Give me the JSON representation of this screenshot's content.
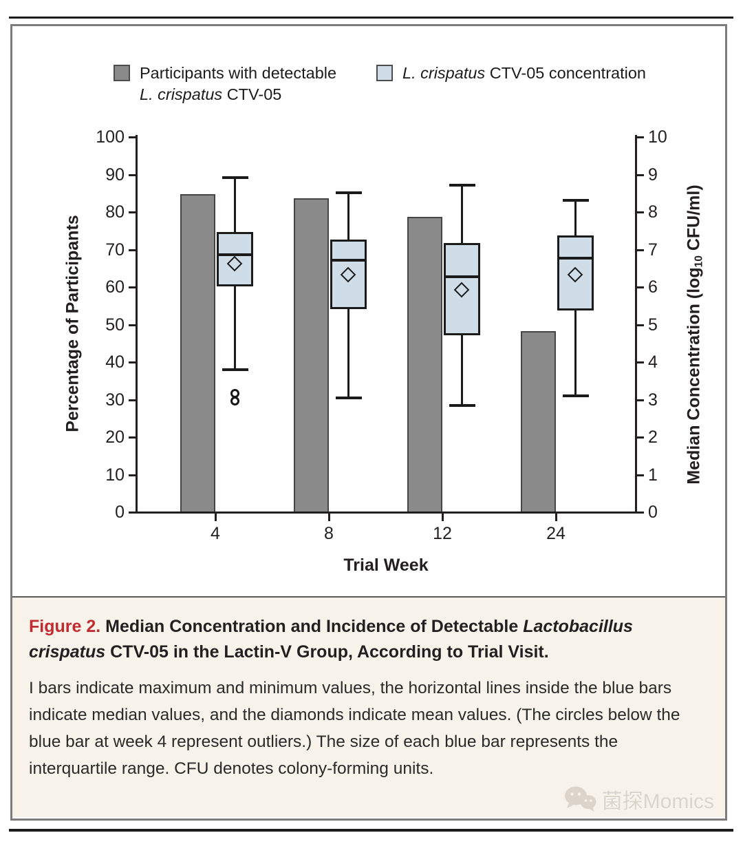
{
  "legend": {
    "item1": {
      "line1": "Participants with detectable",
      "line2_italic": "L. crispatus",
      "line2_rest": " CTV-05"
    },
    "item2": {
      "italic": "L. crispatus",
      "rest": " CTV-05 concentration"
    }
  },
  "chart_data": {
    "type": "bar+boxplot",
    "categories": [
      "4",
      "8",
      "12",
      "24"
    ],
    "xlabel": "Trial Week",
    "y_left": {
      "label": "Percentage of Participants",
      "min": 0,
      "max": 100,
      "step": 10
    },
    "y_right": {
      "title_pre": "Median Concentration (log",
      "title_sub": "10",
      "title_post": " CFU/ml)",
      "min": 0,
      "max": 10,
      "step": 1
    },
    "bar_series": {
      "name": "Participants with detectable L. crispatus CTV-05",
      "unit": "percent",
      "values": [
        84.5,
        83.5,
        78.5,
        48
      ]
    },
    "box_series": {
      "name": "L. crispatus CTV-05 concentration",
      "unit": "log10 CFU/ml",
      "boxes": [
        {
          "week": "4",
          "max": 8.9,
          "q3": 7.45,
          "median": 6.85,
          "mean": 6.6,
          "q1": 6.0,
          "min": 3.8,
          "outliers": [
            3.15,
            2.95
          ]
        },
        {
          "week": "8",
          "max": 8.5,
          "q3": 7.25,
          "median": 6.7,
          "mean": 6.3,
          "q1": 5.4,
          "min": 3.05,
          "outliers": []
        },
        {
          "week": "12",
          "max": 8.7,
          "q3": 7.15,
          "median": 6.25,
          "mean": 5.9,
          "q1": 4.7,
          "min": 2.85,
          "outliers": []
        },
        {
          "week": "24",
          "max": 8.3,
          "q3": 7.35,
          "median": 6.75,
          "mean": 6.3,
          "q1": 5.35,
          "min": 3.1,
          "outliers": []
        }
      ]
    },
    "colors": {
      "bar": "#8a8a8a",
      "bar_border": "#454545",
      "box_fill": "#cfdde8",
      "box_border": "#1b1b1b",
      "axis": "#231f20"
    },
    "legend_position": "top",
    "grid": false
  },
  "caption": {
    "label": "Figure 2.",
    "title_part1": " Median Concentration and Incidence of Detectable ",
    "title_italic": "Lactobacillus crispatus",
    "title_part2": " CTV-05 in the Lactin-V Group, According to Trial Visit.",
    "body": "I bars indicate maximum and minimum values, the horizontal lines inside the blue bars indicate median values, and the diamonds indicate mean values. (The circles below the blue bar at week 4 represent outliers.) The size of each blue bar represents the interquartile range. CFU denotes colony-forming units."
  },
  "watermark": {
    "text": "菌探Momics"
  }
}
